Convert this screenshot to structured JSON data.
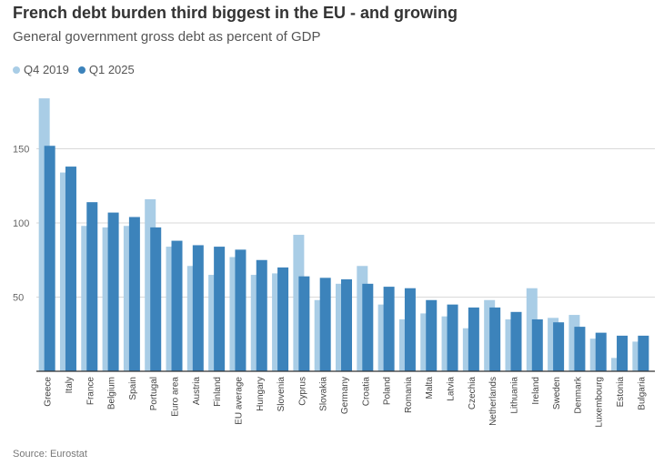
{
  "title": "French debt burden third biggest in the EU - and growing",
  "subtitle": "General government gross debt as percent of GDP",
  "source": "Source: Eurostat",
  "colors": {
    "q4_2019": "#a9cde6",
    "q1_2025": "#3c83bb",
    "grid": "#d9d9d9",
    "axis": "#333333"
  },
  "chart_data": {
    "type": "bar",
    "categories": [
      "Greece",
      "Italy",
      "France",
      "Belgium",
      "Spain",
      "Portugal",
      "Euro area",
      "Austria",
      "Finland",
      "EU average",
      "Hungary",
      "Slovenia",
      "Cyprus",
      "Slovakia",
      "Germany",
      "Croatia",
      "Poland",
      "Romania",
      "Malta",
      "Latvia",
      "Czechia",
      "Netherlands",
      "Lithuania",
      "Ireland",
      "Sweden",
      "Denmark",
      "Luxembourg",
      "Estonia",
      "Bulgaria"
    ],
    "series": [
      {
        "name": "Q4 2019",
        "values": [
          184,
          134,
          98,
          97,
          98,
          116,
          84,
          71,
          65,
          77,
          65,
          66,
          92,
          48,
          59,
          71,
          45,
          35,
          39,
          37,
          29,
          48,
          35,
          56,
          36,
          38,
          22,
          9,
          20
        ]
      },
      {
        "name": "Q1 2025",
        "values": [
          152,
          138,
          114,
          107,
          104,
          97,
          88,
          85,
          84,
          82,
          75,
          70,
          64,
          63,
          62,
          59,
          57,
          56,
          48,
          45,
          43,
          43,
          40,
          35,
          33,
          30,
          26,
          24,
          24
        ]
      }
    ],
    "yticks": [
      50,
      100,
      150
    ],
    "ylim": [
      0,
      184
    ],
    "grid": true,
    "legend": "top-left"
  }
}
